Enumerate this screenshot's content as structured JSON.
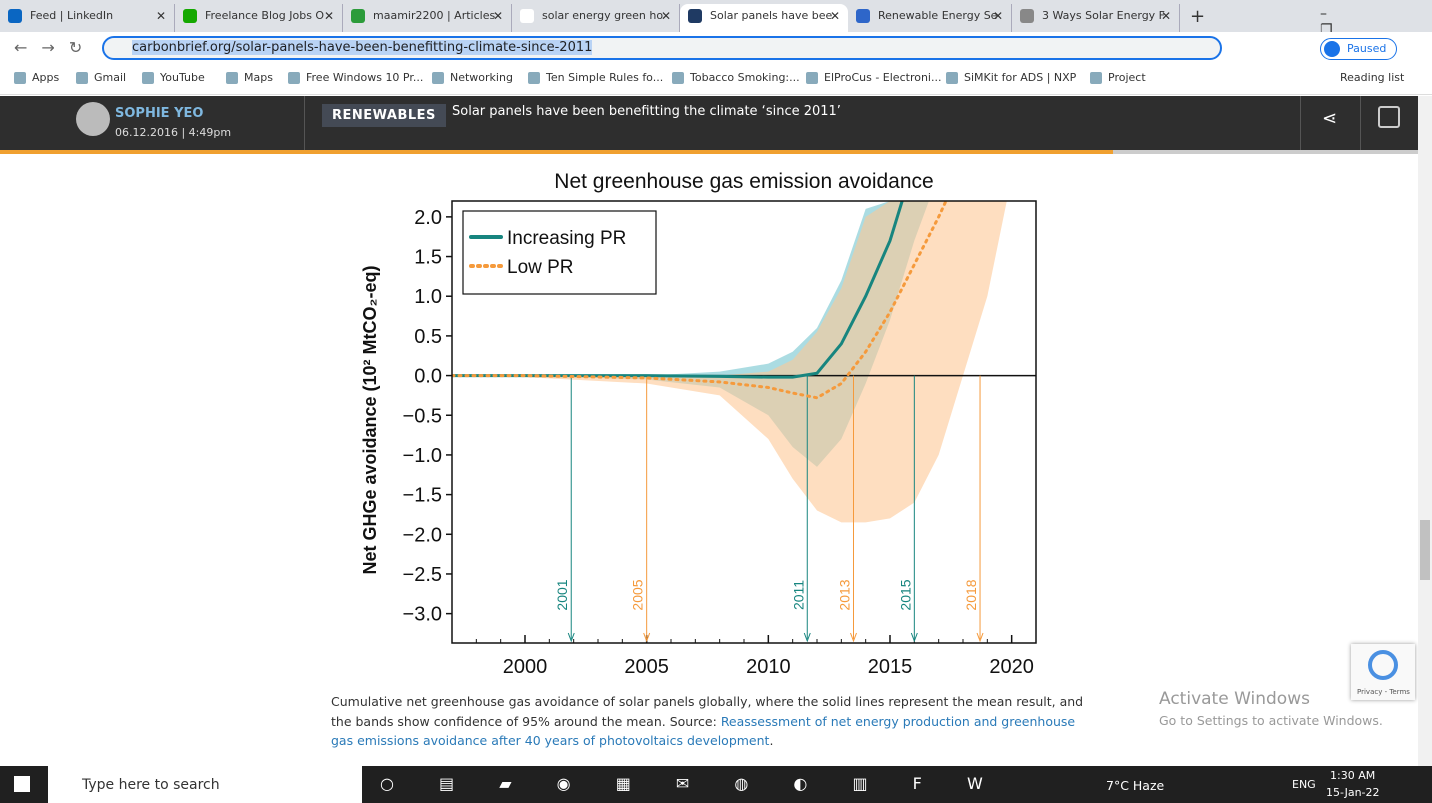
{
  "browser": {
    "tabs": [
      "Feed | LinkedIn",
      "Freelance Blog Jobs O",
      "maamir2200 | Articles",
      "solar energy green ho",
      "Solar panels have bee",
      "Renewable Energy Se",
      "3 Ways Solar Energy F"
    ],
    "url": "carbonbrief.org/solar-panels-have-been-benefitting-climate-since-2011",
    "profile": "Paused",
    "bookmarks": [
      "Apps",
      "Gmail",
      "YouTube",
      "Maps",
      "Free Windows 10 Pr...",
      "Networking",
      "Ten Simple Rules fo...",
      "Tobacco Smoking:...",
      "ElProCus - Electroni...",
      "SiMKit for ADS | NXP",
      "Project"
    ],
    "reading_list": "Reading list"
  },
  "article": {
    "author": "SOPHIE YEO",
    "date": "06.12.2016 | 4:49pm",
    "category": "RENEWABLES",
    "headline": "Solar panels have been benefitting the climate ‘since 2011’"
  },
  "chart_data": {
    "type": "line",
    "title": "Net greenhouse gas emission avoidance",
    "ylabel": "Net GHGe avoidance (10² MtCO₂-eq)",
    "xlim": [
      1997,
      2021
    ],
    "ylim": [
      -3.37,
      2.2
    ],
    "xticks": [
      2000,
      2005,
      2010,
      2015,
      2020
    ],
    "yticks": [
      {
        "value": 2,
        "label": "2.0"
      },
      1.5,
      {
        "value": 1,
        "label": "1.0"
      },
      0.5,
      {
        "value": 0,
        "label": "0.0"
      },
      {
        "value": -0.5,
        "label": "−0.5"
      },
      {
        "value": -1,
        "label": "−1.0"
      },
      {
        "value": -1.5,
        "label": "−1.5"
      },
      {
        "value": -2,
        "label": "−2.0"
      },
      {
        "value": -2.5,
        "label": "−2.5"
      },
      {
        "value": -3,
        "label": "−3.0"
      }
    ],
    "legend": "upper left",
    "series": [
      {
        "name": "Increasing PR",
        "color": "#17857f",
        "style": "solid",
        "x": [
          1997,
          2000,
          2005,
          2008,
          2010,
          2011,
          2012,
          2013,
          2014,
          2015,
          2015.5
        ],
        "values": [
          0,
          0,
          0,
          -0.01,
          -0.02,
          -0.02,
          0.03,
          0.4,
          1.0,
          1.7,
          2.2
        ],
        "band_x": [
          1997,
          2000,
          2005,
          2008,
          2010,
          2011,
          2012,
          2013,
          2014,
          2015,
          2016,
          2016.6
        ],
        "band_upper": [
          0,
          0,
          0,
          0.05,
          0.15,
          0.3,
          0.6,
          1.2,
          2.1,
          2.2,
          2.2,
          2.2
        ],
        "band_lower": [
          0,
          0,
          -0.05,
          -0.15,
          -0.5,
          -0.9,
          -1.15,
          -0.8,
          -0.1,
          0.7,
          1.7,
          2.2
        ],
        "band_color": "#8fd0d8"
      },
      {
        "name": "Low PR",
        "color": "#f59a3c",
        "style": "dotted",
        "x": [
          1997,
          2000,
          2005,
          2008,
          2010,
          2011,
          2012,
          2013,
          2014,
          2015,
          2016,
          2017,
          2017.3
        ],
        "values": [
          0,
          0,
          -0.03,
          -0.08,
          -0.15,
          -0.22,
          -0.28,
          -0.1,
          0.3,
          0.8,
          1.4,
          2.0,
          2.2
        ],
        "band_x": [
          1997,
          2000,
          2005,
          2008,
          2010,
          2011,
          2012,
          2013,
          2014,
          2015,
          2016,
          2017,
          2018,
          2019,
          2019.8
        ],
        "band_upper": [
          0,
          0,
          0,
          0,
          0.05,
          0.2,
          0.55,
          1.1,
          2.0,
          2.2,
          2.2,
          2.2,
          2.2,
          2.2,
          2.2
        ],
        "band_lower": [
          0,
          -0.02,
          -0.1,
          -0.25,
          -0.8,
          -1.3,
          -1.7,
          -1.85,
          -1.85,
          -1.8,
          -1.6,
          -1.0,
          0,
          1.0,
          2.2
        ],
        "band_color": "#fdc896"
      }
    ],
    "annotations": [
      {
        "label": "2001",
        "x": 2001.9,
        "color": "#17857f"
      },
      {
        "label": "2005",
        "x": 2005.0,
        "color": "#f59a3c"
      },
      {
        "label": "2011",
        "x": 2011.6,
        "color": "#17857f"
      },
      {
        "label": "2013",
        "x": 2013.5,
        "color": "#f59a3c"
      },
      {
        "label": "2015",
        "x": 2016.0,
        "color": "#17857f"
      },
      {
        "label": "2018",
        "x": 2018.7,
        "color": "#f59a3c"
      }
    ]
  },
  "caption": {
    "text": "Cumulative net greenhouse gas avoidance of solar panels globally, where the solid lines represent the mean result, and the bands show confidence of 95% around the mean. Source: ",
    "link": "Reassessment of net energy production and greenhouse gas emissions avoidance after 40 years of photovoltaics development",
    "end": "."
  },
  "overlay": {
    "activate_title": "Activate Windows",
    "activate_sub": "Go to Settings to activate Windows.",
    "recaptcha": "Privacy - Terms"
  },
  "taskbar": {
    "search": "Type here to search",
    "weather": "7°C  Haze",
    "lang": "ENG",
    "time": "1:30 AM",
    "date": "15-Jan-22"
  }
}
